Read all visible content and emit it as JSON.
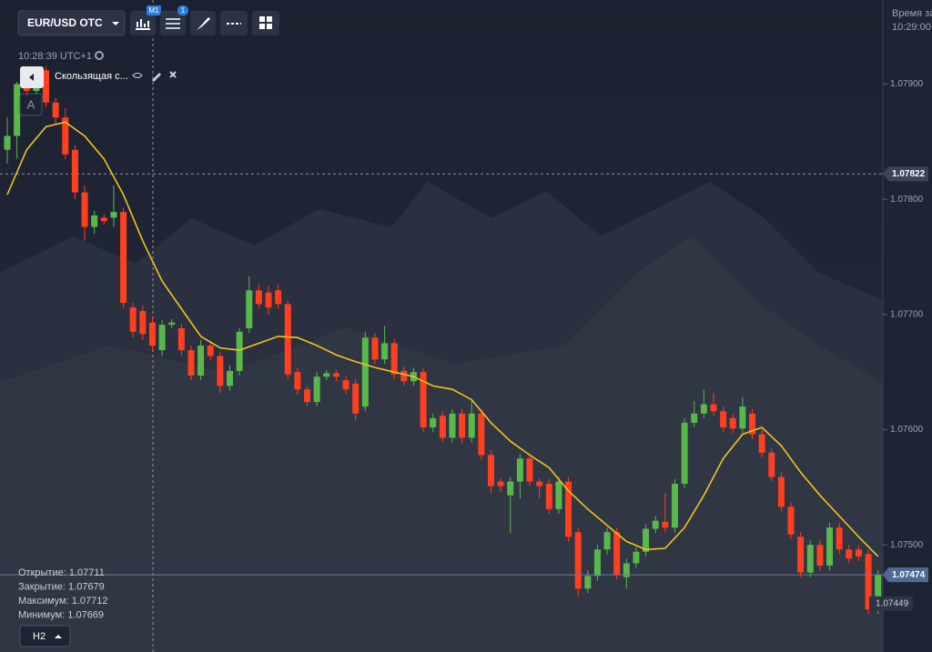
{
  "toolbar": {
    "asset": "EUR/USD OTC",
    "timeframe_badge": "M1",
    "indicator_badge": "1"
  },
  "clock": "10:28:39 UTC+1",
  "expiry": {
    "label": "Время за",
    "time": "10:29:00"
  },
  "drawing_mode": "A",
  "ohlc_info": [
    {
      "label": "Открытие:",
      "value": "1.07711"
    },
    {
      "label": "Закрытие:",
      "value": "1.07679"
    },
    {
      "label": "Максимум:",
      "value": "1.07712"
    },
    {
      "label": "Минимум:",
      "value": "1.07669"
    }
  ],
  "period_button": "H2",
  "chart_data": {
    "type": "candlestick",
    "open": [
      1.07843,
      1.07855,
      1.07897,
      1.07894,
      1.07912,
      1.07884,
      1.07871,
      1.07843,
      1.07806,
      1.07776,
      1.07784,
      1.07784,
      1.07789,
      1.07706,
      1.07703,
      1.07693,
      1.07669,
      1.07691,
      1.07688,
      1.07669,
      1.07647,
      1.07673,
      1.07664,
      1.07638,
      1.07651,
      1.07688,
      1.07721,
      1.07719,
      1.07721,
      1.07709,
      1.0765,
      1.07635,
      1.07624,
      1.07646,
      1.07649,
      1.07643,
      1.0764,
      1.0762,
      1.0768,
      1.07661,
      1.07675,
      1.07651,
      1.07642,
      1.0765,
      1.07602,
      1.07612,
      1.07593,
      1.07614,
      1.07593,
      1.07614,
      1.07578,
      1.07555,
      1.07543,
      1.07555,
      1.07575,
      1.07555,
      1.07553,
      1.07531,
      1.07555,
      1.07511,
      1.07462,
      1.07473,
      1.07496,
      1.07511,
      1.07472,
      1.07484,
      1.07494,
      1.07514,
      1.0752,
      1.07515,
      1.07553,
      1.07606,
      1.07614,
      1.07622,
      1.07616,
      1.0761,
      1.07601,
      1.07614,
      1.07596,
      1.0758,
      1.07559,
      1.07533,
      1.07507,
      1.07476,
      1.075,
      1.07482,
      1.07515,
      1.07496,
      1.07496,
      1.07492,
      1.07444
    ],
    "high": [
      1.07871,
      1.07902,
      1.07901,
      1.079,
      1.07915,
      1.07888,
      1.07879,
      1.07847,
      1.07812,
      1.0779,
      1.07787,
      1.07812,
      1.07793,
      1.0771,
      1.07708,
      1.07698,
      1.07695,
      1.07696,
      1.07692,
      1.07673,
      1.07678,
      1.07677,
      1.07668,
      1.07656,
      1.07688,
      1.07733,
      1.07726,
      1.07725,
      1.07726,
      1.07712,
      1.07654,
      1.07638,
      1.0765,
      1.07652,
      1.07652,
      1.07647,
      1.07644,
      1.07685,
      1.07684,
      1.0769,
      1.07679,
      1.07655,
      1.07654,
      1.07654,
      1.07614,
      1.07616,
      1.07618,
      1.07618,
      1.07625,
      1.07618,
      1.07582,
      1.07558,
      1.07559,
      1.07579,
      1.07579,
      1.07558,
      1.07557,
      1.07559,
      1.07559,
      1.07515,
      1.07478,
      1.075,
      1.07515,
      1.07515,
      1.07488,
      1.07498,
      1.07518,
      1.07525,
      1.07545,
      1.07557,
      1.0761,
      1.07625,
      1.07635,
      1.07632,
      1.0762,
      1.07614,
      1.07628,
      1.07618,
      1.076,
      1.07584,
      1.07563,
      1.07537,
      1.07511,
      1.07504,
      1.07504,
      1.07519,
      1.07519,
      1.075,
      1.075,
      1.07496,
      1.07478
    ],
    "low": [
      1.07831,
      1.07835,
      1.0789,
      1.07891,
      1.0788,
      1.07865,
      1.07835,
      1.078,
      1.07764,
      1.0777,
      1.07778,
      1.07776,
      1.07706,
      1.0768,
      1.07678,
      1.07668,
      1.07664,
      1.07688,
      1.07664,
      1.07643,
      1.07643,
      1.0766,
      1.07632,
      1.07634,
      1.07647,
      1.07684,
      1.07705,
      1.077,
      1.07705,
      1.07644,
      1.0763,
      1.0762,
      1.0762,
      1.07643,
      1.07642,
      1.07631,
      1.07608,
      1.07616,
      1.07657,
      1.07657,
      1.07644,
      1.07638,
      1.07638,
      1.07598,
      1.07598,
      1.07589,
      1.07589,
      1.07588,
      1.07589,
      1.07574,
      1.07545,
      1.07546,
      1.0751,
      1.0754,
      1.07551,
      1.0754,
      1.07527,
      1.07527,
      1.07503,
      1.07455,
      1.07458,
      1.07469,
      1.07492,
      1.0747,
      1.07462,
      1.0748,
      1.0749,
      1.0751,
      1.07511,
      1.07511,
      1.07549,
      1.07602,
      1.0761,
      1.07612,
      1.07598,
      1.07597,
      1.07597,
      1.07592,
      1.07576,
      1.07555,
      1.07529,
      1.07505,
      1.07472,
      1.07472,
      1.07478,
      1.07478,
      1.07492,
      1.07484,
      1.07486,
      1.0744,
      1.0744
    ],
    "close": [
      1.07855,
      1.079,
      1.07894,
      1.07897,
      1.07884,
      1.07871,
      1.07839,
      1.07806,
      1.07776,
      1.07786,
      1.07781,
      1.07789,
      1.0771,
      1.07685,
      1.07683,
      1.07673,
      1.07691,
      1.07693,
      1.07669,
      1.07647,
      1.07673,
      1.07664,
      1.07638,
      1.07651,
      1.07685,
      1.07721,
      1.07709,
      1.07706,
      1.07709,
      1.07648,
      1.07635,
      1.07624,
      1.07646,
      1.07649,
      1.07646,
      1.07635,
      1.07614,
      1.0768,
      1.07661,
      1.07675,
      1.07648,
      1.07642,
      1.0765,
      1.07602,
      1.0761,
      1.07593,
      1.07614,
      1.07593,
      1.07614,
      1.07578,
      1.07551,
      1.07551,
      1.07555,
      1.07575,
      1.07555,
      1.07551,
      1.07531,
      1.07555,
      1.07507,
      1.07462,
      1.07473,
      1.07496,
      1.07511,
      1.07474,
      1.07484,
      1.07494,
      1.07514,
      1.07521,
      1.07515,
      1.07553,
      1.07606,
      1.07614,
      1.07622,
      1.07616,
      1.07602,
      1.07601,
      1.0762,
      1.07596,
      1.0758,
      1.07559,
      1.07533,
      1.07509,
      1.07476,
      1.075,
      1.07482,
      1.07515,
      1.07496,
      1.07488,
      1.0749,
      1.07444,
      1.07474
    ],
    "up_color": "#58b94a",
    "down_color": "#ff3f1f",
    "ylim": [
      1.07407,
      1.07973
    ],
    "yticks": [
      {
        "value": 1.079,
        "label": "1.07900"
      },
      {
        "value": 1.078,
        "label": "1.07800"
      },
      {
        "value": 1.077,
        "label": "1.07700"
      },
      {
        "value": 1.076,
        "label": "1.07600"
      },
      {
        "value": 1.075,
        "label": "1.07500"
      }
    ],
    "moving_average": {
      "name": "Скользящая с...",
      "color": "#f2c21b",
      "x": [
        0,
        2,
        4,
        6,
        8,
        10,
        12,
        14,
        16,
        18,
        20,
        22,
        24,
        26,
        28,
        30,
        32,
        34,
        36,
        38,
        40,
        42,
        44,
        46,
        48,
        50,
        52,
        54,
        56,
        58,
        60,
        62,
        64,
        66,
        68,
        70,
        72,
        74,
        76,
        78,
        80,
        82,
        84,
        86,
        88,
        90
      ],
      "values": [
        1.07804,
        1.07843,
        1.07863,
        1.07867,
        1.07855,
        1.07835,
        1.07804,
        1.07764,
        1.07729,
        1.07705,
        1.07681,
        1.07671,
        1.07669,
        1.07675,
        1.07681,
        1.0768,
        1.07673,
        1.07665,
        1.07659,
        1.07654,
        1.0765,
        1.07646,
        1.07638,
        1.07635,
        1.07626,
        1.07606,
        1.0759,
        1.07578,
        1.07567,
        1.07547,
        1.07531,
        1.07517,
        1.07503,
        1.07496,
        1.07497,
        1.07515,
        1.07543,
        1.07575,
        1.07596,
        1.07602,
        1.07586,
        1.07563,
        1.07543,
        1.07525,
        1.07507,
        1.0749
      ]
    },
    "current_price": 1.07474,
    "crosshair_price": 1.07822,
    "low_marker": 1.07449
  }
}
